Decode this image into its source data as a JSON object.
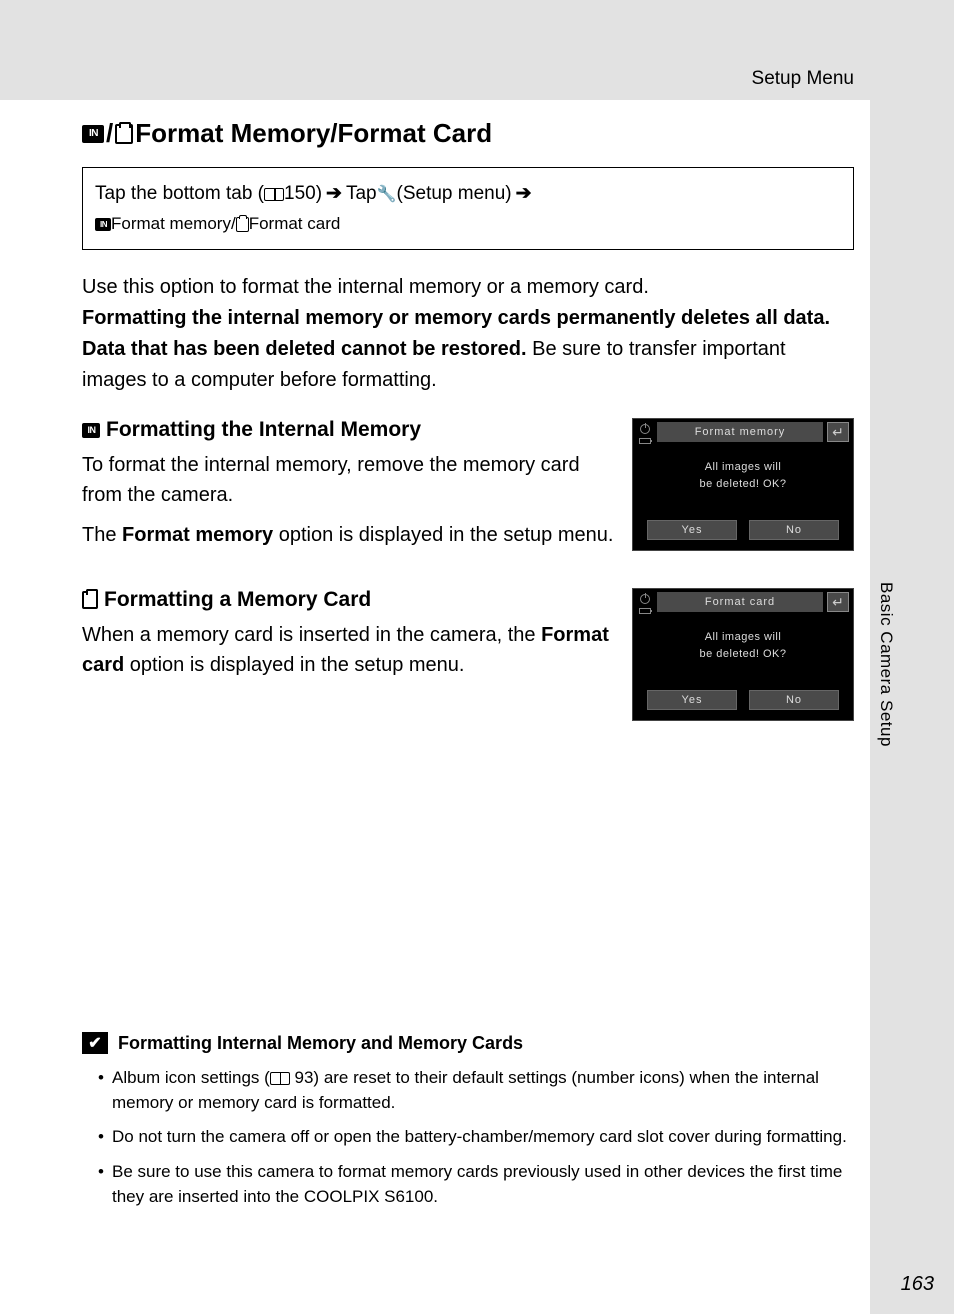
{
  "header": {
    "section_label": "Setup Menu"
  },
  "side": {
    "label": "Basic Camera Setup"
  },
  "title": {
    "icon_in": "IN",
    "text": "Format Memory/Format Card"
  },
  "nav": {
    "line1_a": "Tap the bottom tab (",
    "line1_pageref": " 150) ",
    "line1_b": " Tap ",
    "line1_c": " (Setup menu) ",
    "line2_a": " Format memory/",
    "line2_b": " Format card"
  },
  "intro": {
    "p1": "Use this option to format the internal memory or a memory card.",
    "bold": "Formatting the internal memory or memory cards permanently deletes all data. Data that has been deleted cannot be restored.",
    "p2": " Be sure to transfer important images to a computer before formatting."
  },
  "sec1": {
    "heading": "Formatting the Internal Memory",
    "p1": "To format the internal memory, remove the memory card from the camera.",
    "p2a": "The ",
    "p2b": "Format memory",
    "p2c": " option is displayed in the setup menu."
  },
  "sec2": {
    "heading": "Formatting a Memory Card",
    "p1a": "When a memory card is inserted in the camera, the ",
    "p1b": "Format card",
    "p1c": " option is displayed in the setup menu."
  },
  "lcd1": {
    "title": "Format memory",
    "msg1": "All images will",
    "msg2": "be deleted! OK?",
    "yes": "Yes",
    "no": "No"
  },
  "lcd2": {
    "title": "Format card",
    "msg1": "All images will",
    "msg2": "be deleted! OK?",
    "yes": "Yes",
    "no": "No"
  },
  "note": {
    "heading": "Formatting Internal Memory and Memory Cards",
    "b1a": "Album icon settings (",
    "b1_pageref": " 93) are reset to their default settings (number icons) when the internal memory or memory card is formatted.",
    "b2": "Do not turn the camera off or open the battery-chamber/memory card slot cover during formatting.",
    "b3": "Be sure to use this camera to format memory cards previously used in other devices the first time they are inserted into the COOLPIX S6100."
  },
  "page_number": "163",
  "colors": {
    "page_bg": "#e2e2e2",
    "content_bg": "#ffffff",
    "text": "#000000",
    "lcd_bg": "#000000",
    "lcd_bar": "#4a4a4a",
    "lcd_text": "#dddddd"
  }
}
